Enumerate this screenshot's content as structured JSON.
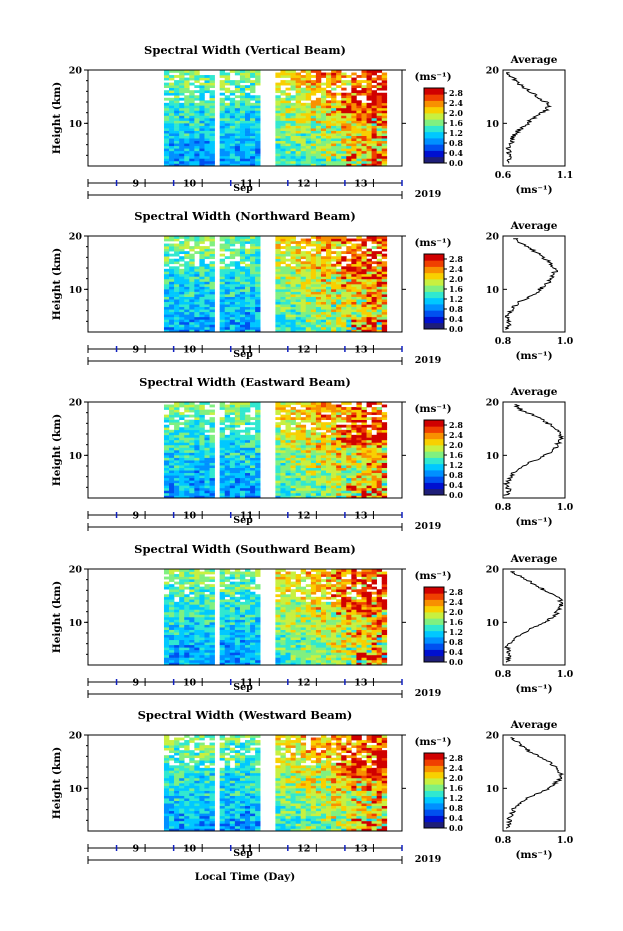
{
  "chart_data": {
    "type": "heatmap",
    "x_label": "Local Time (Day)",
    "month_label": "Sep",
    "year_label": "2019",
    "day_ticks": [
      "9",
      "10",
      "11",
      "12",
      "13"
    ],
    "y_label": "Height (km)",
    "y_ticks": [
      "10",
      "20"
    ],
    "ylim": [
      2,
      20
    ],
    "colorbar": {
      "unit_label": "(ms⁻¹)",
      "ticks": [
        "0.0",
        "0.4",
        "0.8",
        "1.2",
        "1.6",
        "2.0",
        "2.4",
        "2.8"
      ],
      "range": [
        0.0,
        3.0
      ],
      "colors": [
        "#1e1e78",
        "#0010d0",
        "#0050f0",
        "#0090ff",
        "#00c8ff",
        "#30e8d0",
        "#80f080",
        "#c8f040",
        "#f8d000",
        "#f89000",
        "#f04000",
        "#d00000"
      ]
    },
    "data_gaps_day": [
      [
        8.5,
        9.3
      ],
      [
        10.25,
        10.35
      ],
      [
        11.05,
        11.25
      ]
    ],
    "average_profile": {
      "title": "Average",
      "y_ticks": [
        "10",
        "20"
      ],
      "x_label": "(ms⁻¹)"
    },
    "panels": [
      {
        "title": "Spectral Width (Vertical Beam)",
        "avg_x_ticks": [
          "0.6",
          "1.1"
        ],
        "avg_xlim": [
          0.6,
          1.1
        ],
        "avg_profile": [
          [
            2.5,
            0.64
          ],
          [
            3.5,
            0.66
          ],
          [
            4.5,
            0.65
          ],
          [
            5.5,
            0.64
          ],
          [
            6.5,
            0.67
          ],
          [
            7.5,
            0.68
          ],
          [
            8.5,
            0.72
          ],
          [
            9.5,
            0.78
          ],
          [
            10.5,
            0.82
          ],
          [
            11.5,
            0.88
          ],
          [
            12.5,
            0.95
          ],
          [
            13.5,
            0.98
          ],
          [
            14.5,
            0.9
          ],
          [
            15.5,
            0.85
          ],
          [
            16.5,
            0.78
          ],
          [
            17.5,
            0.72
          ],
          [
            18.5,
            0.68
          ],
          [
            19.5,
            0.64
          ]
        ]
      },
      {
        "title": "Spectral Width (Northward Beam)",
        "avg_x_ticks": [
          "0.8",
          "1.0"
        ],
        "avg_xlim": [
          0.8,
          1.0
        ],
        "avg_profile": [
          [
            2.5,
            0.81
          ],
          [
            3.5,
            0.82
          ],
          [
            4.5,
            0.81
          ],
          [
            5.5,
            0.82
          ],
          [
            6.5,
            0.83
          ],
          [
            7.5,
            0.85
          ],
          [
            8.5,
            0.88
          ],
          [
            9.5,
            0.91
          ],
          [
            10.5,
            0.93
          ],
          [
            11.5,
            0.95
          ],
          [
            12.5,
            0.96
          ],
          [
            13.5,
            0.97
          ],
          [
            14.5,
            0.96
          ],
          [
            15.5,
            0.94
          ],
          [
            16.5,
            0.92
          ],
          [
            17.5,
            0.89
          ],
          [
            18.5,
            0.86
          ],
          [
            19.5,
            0.84
          ]
        ]
      },
      {
        "title": "Spectral Width (Eastward Beam)",
        "avg_x_ticks": [
          "0.8",
          "1.0"
        ],
        "avg_xlim": [
          0.8,
          1.0
        ],
        "avg_profile": [
          [
            2.5,
            0.81
          ],
          [
            3.5,
            0.82
          ],
          [
            4.5,
            0.81
          ],
          [
            5.5,
            0.82
          ],
          [
            6.5,
            0.83
          ],
          [
            7.5,
            0.85
          ],
          [
            8.5,
            0.88
          ],
          [
            9.5,
            0.92
          ],
          [
            10.5,
            0.95
          ],
          [
            11.5,
            0.97
          ],
          [
            12.5,
            0.98
          ],
          [
            13.5,
            0.99
          ],
          [
            14.5,
            0.98
          ],
          [
            15.5,
            0.96
          ],
          [
            16.5,
            0.93
          ],
          [
            17.5,
            0.9
          ],
          [
            18.5,
            0.86
          ],
          [
            19.5,
            0.84
          ]
        ]
      },
      {
        "title": "Spectral Width (Southward Beam)",
        "avg_x_ticks": [
          "0.8",
          "1.0"
        ],
        "avg_xlim": [
          0.8,
          1.0
        ],
        "avg_profile": [
          [
            2.5,
            0.81
          ],
          [
            3.5,
            0.82
          ],
          [
            4.5,
            0.82
          ],
          [
            5.5,
            0.81
          ],
          [
            6.5,
            0.83
          ],
          [
            7.5,
            0.85
          ],
          [
            8.5,
            0.88
          ],
          [
            9.5,
            0.92
          ],
          [
            10.5,
            0.95
          ],
          [
            11.5,
            0.97
          ],
          [
            12.5,
            0.98
          ],
          [
            13.5,
            0.99
          ],
          [
            14.5,
            0.98
          ],
          [
            15.5,
            0.95
          ],
          [
            16.5,
            0.92
          ],
          [
            17.5,
            0.89
          ],
          [
            18.5,
            0.86
          ],
          [
            19.5,
            0.83
          ]
        ]
      },
      {
        "title": "Spectral Width (Westward Beam)",
        "avg_x_ticks": [
          "0.8",
          "1.0"
        ],
        "avg_xlim": [
          0.8,
          1.0
        ],
        "avg_profile": [
          [
            2.5,
            0.81
          ],
          [
            3.5,
            0.82
          ],
          [
            4.5,
            0.82
          ],
          [
            5.5,
            0.83
          ],
          [
            6.5,
            0.84
          ],
          [
            7.5,
            0.86
          ],
          [
            8.5,
            0.89
          ],
          [
            9.5,
            0.93
          ],
          [
            10.5,
            0.96
          ],
          [
            11.5,
            0.98
          ],
          [
            12.5,
            0.99
          ],
          [
            13.5,
            0.98
          ],
          [
            14.5,
            0.96
          ],
          [
            15.5,
            0.93
          ],
          [
            16.5,
            0.9
          ],
          [
            17.5,
            0.87
          ],
          [
            18.5,
            0.85
          ],
          [
            19.5,
            0.83
          ]
        ]
      }
    ]
  }
}
